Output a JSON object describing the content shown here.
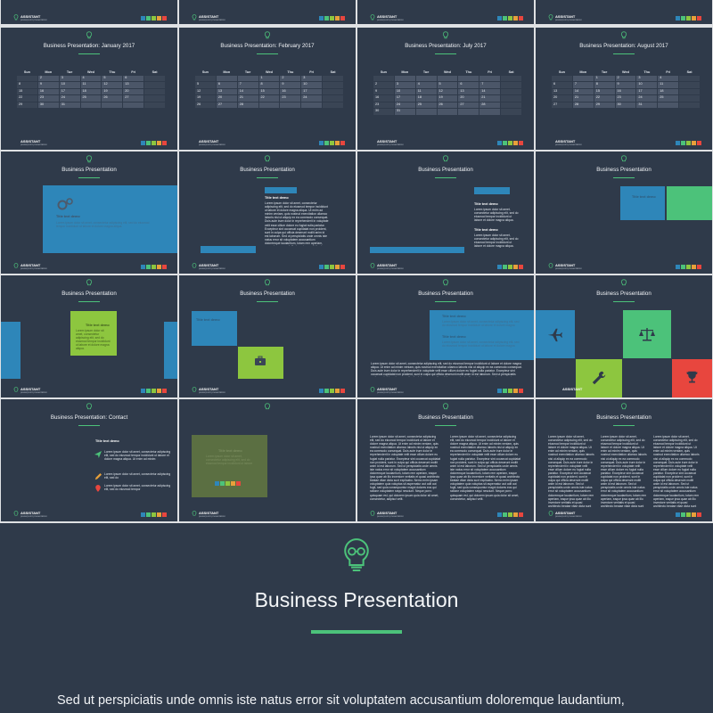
{
  "brand": {
    "name": "ASSISTANT",
    "tagline": "powerpoint presentation"
  },
  "colors": {
    "bg": "#2f3a4a",
    "accent": "#4cc27a",
    "blue": "#2e86b9",
    "green": "#4cc27a",
    "lime": "#8dc63f",
    "red": "#e8463e",
    "olive": "#5b6f42"
  },
  "social": [
    "#2e86b9",
    "#4cc27a",
    "#8dc63f",
    "#e8a03a",
    "#e8463e"
  ],
  "row1": [
    {
      "brand": "ASSISTANT"
    },
    {
      "brand": "ASSISTANT"
    },
    {
      "brand": "ASSISTANT"
    },
    {
      "brand": "ASSISTANT"
    }
  ],
  "weekdays": [
    "Sun",
    "Mon",
    "Tue",
    "Wed",
    "Thu",
    "Fri",
    "Sat"
  ],
  "calendars": [
    {
      "title": "Business Presentation: January 2017",
      "weeks": [
        [
          "",
          "2",
          "3",
          "4",
          "5",
          "6",
          ""
        ],
        [
          "8",
          "9",
          "10",
          "11",
          "12",
          "13",
          ""
        ],
        [
          "15",
          "16",
          "17",
          "18",
          "19",
          "20",
          ""
        ],
        [
          "22",
          "23",
          "24",
          "25",
          "26",
          "27",
          ""
        ],
        [
          "29",
          "30",
          "31",
          "",
          "",
          "",
          ""
        ]
      ]
    },
    {
      "title": "Business Presentation: February 2017",
      "weeks": [
        [
          "",
          "",
          "",
          "1",
          "2",
          "3",
          ""
        ],
        [
          "5",
          "6",
          "7",
          "8",
          "9",
          "10",
          ""
        ],
        [
          "12",
          "13",
          "14",
          "15",
          "16",
          "17",
          ""
        ],
        [
          "19",
          "20",
          "21",
          "22",
          "23",
          "24",
          ""
        ],
        [
          "26",
          "27",
          "28",
          "",
          "",
          "",
          ""
        ]
      ]
    },
    {
      "title": "Business Presentation: July 2017",
      "weeks": [
        [
          "",
          "",
          "",
          "",
          "",
          "",
          ""
        ],
        [
          "2",
          "3",
          "4",
          "5",
          "6",
          "7",
          ""
        ],
        [
          "9",
          "10",
          "11",
          "12",
          "13",
          "14",
          ""
        ],
        [
          "16",
          "17",
          "18",
          "19",
          "20",
          "21",
          ""
        ],
        [
          "23",
          "24",
          "25",
          "26",
          "27",
          "28",
          ""
        ],
        [
          "30",
          "31",
          "",
          "",
          "",
          "",
          ""
        ]
      ]
    },
    {
      "title": "Business Presentation: August 2017",
      "weeks": [
        [
          "",
          "",
          "1",
          "2",
          "3",
          "4",
          ""
        ],
        [
          "6",
          "7",
          "8",
          "9",
          "10",
          "11",
          ""
        ],
        [
          "13",
          "14",
          "15",
          "16",
          "17",
          "18",
          ""
        ],
        [
          "20",
          "21",
          "22",
          "23",
          "24",
          "25",
          ""
        ],
        [
          "27",
          "28",
          "29",
          "30",
          "31",
          "",
          ""
        ]
      ]
    }
  ],
  "slide_title": "Business Presentation",
  "title_text": "Title text demo",
  "lorem_short": "Lorem ipsum dolor sit amet, consectetur adipiscing elit, sed do eiusmod tempor incididunt ut labore et dolore magna aliqua.",
  "lorem_long": "Lorem ipsum dolor sit amet, consectetur adipiscing elit, sed do eiusmod tempor incididunt ut labore et dolore magna aliqua. Ut enim ad minim veniam, quis nostrud exercitation ullamco laboris nisi ut aliquip ex ea commodo consequat. Duis aute irure dolor in reprehenderit in voluptate velit esse cillum dolore eu fugiat nulla pariatur. Excepteur sint occaecat cupidatat non proident, sunt in culpa qui officia deserunt mollit anim id est laborum. Sed ut perspiciatis unde omnis iste natus error sit voluptatem accusantium doloremque laudantium, totam rem aperiam, eaque ipsa quae ab illo inventore veritatis et quasi architecto beatae vitae dicta sunt explicabo. Nemo enim ipsam voluptatem quia voluptas sit aspernatur aut odit aut fugit, sed quia consequuntur magni dolores eos qui ratione voluptatem sequi nesciunt. Neque porro quisquam est, qui dolorem ipsum quia dolor sit amet, consectetur, adipisci velit.",
  "contact_title": "Business Presentation: Contact",
  "contact_items": [
    "Lorem ipsum dolor sit amet, consectetur adipiscing elit, sed do eiusmod tempor incididunt ut labore et dolore magna aliqua. Ut enim ad minim",
    "Lorem ipsum dolor sit amet, consectetur adipiscing elit, sed do",
    "Lorem ipsum dolor sit amet, consectetur adipiscing elit, sed do eiusmod tempor"
  ],
  "big": {
    "title": "Business Presentation",
    "body": "Sed ut perspiciatis unde omnis iste natus error sit voluptatem accusantium doloremque laudantium,"
  },
  "icons": [
    "bulb-icon",
    "airplane-icon",
    "scales-icon",
    "wrench-icon",
    "trophy-icon",
    "briefcase-icon",
    "gears-icon",
    "send-icon",
    "pencil-icon",
    "location-pin-icon"
  ]
}
